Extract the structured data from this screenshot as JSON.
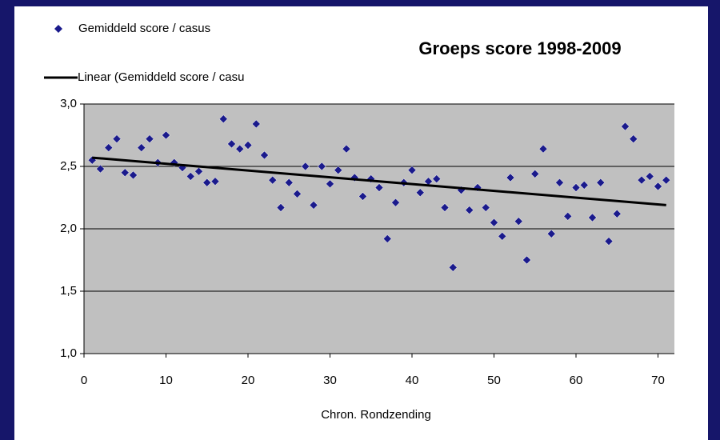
{
  "chart_data": {
    "type": "scatter",
    "title": "Groeps score 1998-2009",
    "x_label": "Chron. Rondzending",
    "xlim": [
      0,
      72
    ],
    "xticks": [
      0,
      10,
      20,
      30,
      40,
      50,
      60,
      70
    ],
    "ylim": [
      1,
      3
    ],
    "yticks": [
      {
        "value": 1,
        "label": "1,0"
      },
      {
        "value": 1.5,
        "label": "1,5"
      },
      {
        "value": 2,
        "label": "2,0"
      },
      {
        "value": 2.5,
        "label": "2,5"
      },
      {
        "value": 3,
        "label": "3,0"
      }
    ],
    "grid": true,
    "legend": "top-left",
    "plot_background": "#c0c0c0",
    "background": "#16166a",
    "series": [
      {
        "name": "Gemiddeld score / casus",
        "type": "scatter",
        "color": "#1a1a8c",
        "x": [
          1,
          2,
          3,
          4,
          5,
          6,
          7,
          8,
          9,
          10,
          11,
          12,
          13,
          14,
          15,
          16,
          17,
          18,
          19,
          20,
          21,
          22,
          23,
          24,
          25,
          26,
          27,
          28,
          29,
          30,
          31,
          32,
          33,
          34,
          35,
          36,
          37,
          38,
          39,
          40,
          41,
          42,
          43,
          44,
          45,
          46,
          47,
          48,
          49,
          50,
          51,
          52,
          53,
          54,
          55,
          56,
          57,
          58,
          59,
          60,
          61,
          62,
          63,
          64,
          65,
          66,
          67,
          68,
          69,
          70,
          71
        ],
        "values": [
          2.55,
          2.48,
          2.65,
          2.72,
          2.45,
          2.43,
          2.65,
          2.72,
          2.53,
          2.75,
          2.53,
          2.49,
          2.42,
          2.46,
          2.37,
          2.38,
          2.88,
          2.68,
          2.64,
          2.67,
          2.84,
          2.59,
          2.39,
          2.17,
          2.37,
          2.28,
          2.5,
          2.19,
          2.5,
          2.36,
          2.47,
          2.64,
          2.41,
          2.26,
          2.4,
          2.33,
          1.92,
          2.21,
          2.37,
          2.47,
          2.29,
          2.38,
          2.4,
          2.17,
          1.69,
          2.31,
          2.15,
          2.33,
          2.17,
          2.05,
          1.94,
          2.41,
          2.06,
          1.75,
          2.44,
          2.64,
          1.96,
          2.37,
          2.1,
          2.33,
          2.35,
          2.09,
          2.37,
          1.9,
          2.12,
          2.82,
          2.72,
          2.39,
          2.42,
          2.34,
          2.39
        ]
      },
      {
        "name": "Linear (Gemiddeld score / casu",
        "type": "line",
        "color": "#000000",
        "x": [
          1,
          71
        ],
        "values": [
          2.57,
          2.19
        ]
      }
    ]
  }
}
